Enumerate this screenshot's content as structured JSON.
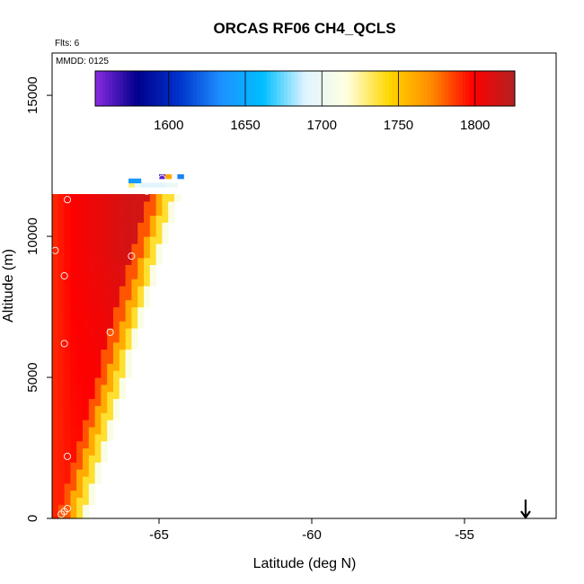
{
  "header": {
    "title": "ORCAS RF06 CH4_QCLS",
    "flights_note": "Flts: 6",
    "date_note": "MMDD: 0125"
  },
  "chart_data": {
    "type": "heatmap",
    "title": "ORCAS RF06 CH4_QCLS",
    "xlabel": "Latitude (deg N)",
    "ylabel": "Altitude (m)",
    "xlim": [
      -68.5,
      -52.0
    ],
    "ylim": [
      0,
      16500
    ],
    "x_ticks": [
      -65,
      -60,
      -55
    ],
    "y_ticks": [
      0,
      5000,
      10000,
      15000
    ],
    "x_tick_labels": [
      "-65",
      "-60",
      "-55"
    ],
    "y_tick_labels": [
      "0",
      "5000",
      "10000",
      "15000"
    ],
    "grid": false,
    "colorbar": {
      "range": [
        1552,
        1826
      ],
      "ticks": [
        1600,
        1650,
        1700,
        1750,
        1800
      ],
      "tick_labels": [
        "1600",
        "1650",
        "1700",
        "1750",
        "1800"
      ],
      "colors": [
        "#8a2be2",
        "#00008b",
        "#0033cc",
        "#1e90ff",
        "#00bfff",
        "#e0f4ff",
        "#ffffe0",
        "#ffd700",
        "#ff8c00",
        "#ff0000",
        "#b22222"
      ],
      "position": "top"
    },
    "cell_size": {
      "dlat": 0.2,
      "dalt": 250
    },
    "gradient": {
      "lat_min": -68.5,
      "lat_max": -64.0,
      "alt_top": 11500,
      "edge_lat_bottom": -67.6,
      "edge_lat_top": -64.6
    },
    "upper_cells": [
      {
        "lat": -66.0,
        "alt": 11750,
        "value": 1730
      },
      {
        "lat": -65.8,
        "alt": 11750,
        "value": 1700
      },
      {
        "lat": -65.6,
        "alt": 11750,
        "value": 1690
      },
      {
        "lat": -65.4,
        "alt": 11750,
        "value": 1690
      },
      {
        "lat": -65.2,
        "alt": 11750,
        "value": 1690
      },
      {
        "lat": -65.0,
        "alt": 11750,
        "value": 1690
      },
      {
        "lat": -64.8,
        "alt": 11750,
        "value": 1700
      },
      {
        "lat": -64.6,
        "alt": 11750,
        "value": 1700
      },
      {
        "lat": -66.0,
        "alt": 11900,
        "value": 1640
      },
      {
        "lat": -65.8,
        "alt": 11900,
        "value": 1640
      },
      {
        "lat": -65.0,
        "alt": 12050,
        "value": 1560
      },
      {
        "lat": -64.8,
        "alt": 12050,
        "value": 1760
      },
      {
        "lat": -64.4,
        "alt": 12050,
        "value": 1630
      }
    ],
    "points": [
      {
        "lat": -68.2,
        "alt": 150
      },
      {
        "lat": -68.1,
        "alt": 250
      },
      {
        "lat": -68.0,
        "alt": 350
      },
      {
        "lat": -68.0,
        "alt": 2200
      },
      {
        "lat": -68.1,
        "alt": 6200
      },
      {
        "lat": -68.1,
        "alt": 8600
      },
      {
        "lat": -68.0,
        "alt": 11300
      },
      {
        "lat": -68.4,
        "alt": 9500
      },
      {
        "lat": -66.6,
        "alt": 6600
      },
      {
        "lat": -65.9,
        "alt": 9300
      },
      {
        "lat": -65.4,
        "alt": 11600
      },
      {
        "lat": -64.9,
        "alt": 12050
      },
      {
        "lat": -64.0,
        "alt": 12050
      }
    ],
    "arrow": {
      "lat": -53.0,
      "direction": "down"
    }
  }
}
